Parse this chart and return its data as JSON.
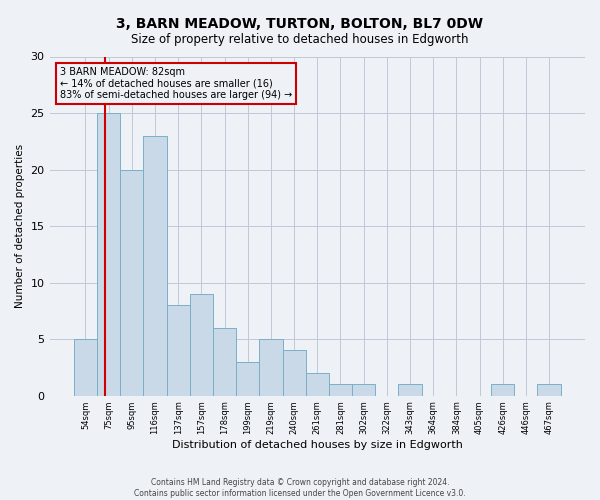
{
  "title1": "3, BARN MEADOW, TURTON, BOLTON, BL7 0DW",
  "title2": "Size of property relative to detached houses in Edgworth",
  "xlabel": "Distribution of detached houses by size in Edgworth",
  "ylabel": "Number of detached properties",
  "footnote1": "Contains HM Land Registry data © Crown copyright and database right 2024.",
  "footnote2": "Contains public sector information licensed under the Open Government Licence v3.0.",
  "annotation_line1": "3 BARN MEADOW: 82sqm",
  "annotation_line2": "← 14% of detached houses are smaller (16)",
  "annotation_line3": "83% of semi-detached houses are larger (94) →",
  "bar_labels": [
    "54sqm",
    "75sqm",
    "95sqm",
    "116sqm",
    "137sqm",
    "157sqm",
    "178sqm",
    "199sqm",
    "219sqm",
    "240sqm",
    "261sqm",
    "281sqm",
    "302sqm",
    "322sqm",
    "343sqm",
    "364sqm",
    "384sqm",
    "405sqm",
    "426sqm",
    "446sqm",
    "467sqm"
  ],
  "bar_values": [
    5,
    25,
    20,
    23,
    8,
    9,
    6,
    3,
    5,
    4,
    2,
    1,
    1,
    0,
    1,
    0,
    0,
    0,
    1,
    0,
    1
  ],
  "bar_color": "#c9d9e8",
  "bar_edgecolor": "#7aafc8",
  "property_line_color": "#cc0000",
  "annotation_box_edgecolor": "#cc0000",
  "background_color": "#eef2f7",
  "grid_color": "#c0c8d8",
  "ylim": [
    0,
    30
  ],
  "yticks": [
    0,
    5,
    10,
    15,
    20,
    25,
    30
  ]
}
